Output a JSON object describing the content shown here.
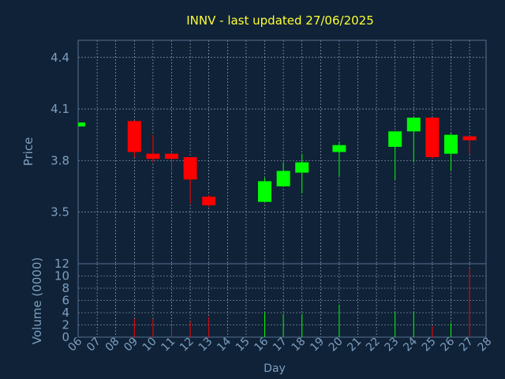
{
  "chart_data": {
    "type": "candlestick",
    "title": "INNV - last updated 27/06/2025",
    "price_panel": {
      "ylabel": "Price",
      "ylim": [
        3.2,
        4.5
      ],
      "yticks": [
        "3.5",
        "3.8",
        "4.1",
        "4.4"
      ],
      "grid": true
    },
    "volume_panel": {
      "ylabel": "Volume (0000)",
      "ylim": [
        0,
        12
      ],
      "yticks": [
        "0",
        "2",
        "4",
        "6",
        "8",
        "10",
        "12"
      ],
      "grid": true
    },
    "xlabel": "Day",
    "x_ticks": [
      "06",
      "07",
      "08",
      "09",
      "10",
      "11",
      "12",
      "13",
      "14",
      "15",
      "16",
      "17",
      "18",
      "19",
      "20",
      "21",
      "22",
      "23",
      "24",
      "25",
      "26",
      "27",
      "28"
    ],
    "candles": [
      {
        "day": 6,
        "open": 4.0,
        "high": 4.02,
        "low": 4.0,
        "close": 4.02,
        "volume": 0
      },
      {
        "day": 9,
        "open": 4.03,
        "high": 4.03,
        "low": 3.82,
        "close": 3.85,
        "volume": 3
      },
      {
        "day": 10,
        "open": 3.84,
        "high": 3.95,
        "low": 3.79,
        "close": 3.81,
        "volume": 3
      },
      {
        "day": 11,
        "open": 3.84,
        "high": 3.85,
        "low": 3.73,
        "close": 3.81,
        "volume": 2
      },
      {
        "day": 12,
        "open": 3.82,
        "high": 3.82,
        "low": 3.55,
        "close": 3.69,
        "volume": 2.5
      },
      {
        "day": 13,
        "open": 3.59,
        "high": 3.6,
        "low": 3.53,
        "close": 3.54,
        "volume": 3.3
      },
      {
        "day": 16,
        "open": 3.56,
        "high": 3.7,
        "low": 3.56,
        "close": 3.68,
        "volume": 4
      },
      {
        "day": 17,
        "open": 3.65,
        "high": 3.79,
        "low": 3.65,
        "close": 3.74,
        "volume": 3.8
      },
      {
        "day": 18,
        "open": 3.73,
        "high": 3.84,
        "low": 3.61,
        "close": 3.79,
        "volume": 3.8
      },
      {
        "day": 20,
        "open": 3.85,
        "high": 3.91,
        "low": 3.71,
        "close": 3.89,
        "volume": 5.3
      },
      {
        "day": 23,
        "open": 3.88,
        "high": 3.97,
        "low": 3.69,
        "close": 3.97,
        "volume": 4.2
      },
      {
        "day": 24,
        "open": 3.97,
        "high": 4.05,
        "low": 3.79,
        "close": 4.05,
        "volume": 4.2
      },
      {
        "day": 25,
        "open": 4.05,
        "high": 4.05,
        "low": 3.81,
        "close": 3.82,
        "volume": 1.8
      },
      {
        "day": 26,
        "open": 3.84,
        "high": 3.96,
        "low": 3.74,
        "close": 3.95,
        "volume": 2.3
      },
      {
        "day": 27,
        "open": 3.94,
        "high": 3.94,
        "low": 3.84,
        "close": 3.92,
        "volume": 11.2
      }
    ],
    "colors": {
      "background": "#0f2237",
      "plot_border": "#5a7090",
      "grid": "#b0b8c8",
      "axis_text": "#7f9fc0",
      "title": "#ffff33",
      "up": "#00ff00",
      "down": "#ff0000"
    }
  }
}
